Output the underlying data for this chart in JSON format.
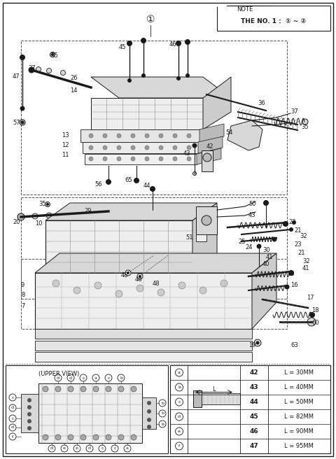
{
  "bg_color": "#ffffff",
  "line_color": "#1a1a1a",
  "text_color": "#1a1a1a",
  "gray_fill": "#d8d8d8",
  "light_gray": "#eeeeee",
  "dark_gray": "#555555",
  "note_text1": "NOTE",
  "note_text2": "THE NO. 1 :  ① ~ ②",
  "circle_num": "①",
  "upper_view_label": "(UPPER VIEW)",
  "table_data": [
    [
      "a",
      "42",
      "L = 30MM"
    ],
    [
      "b",
      "43",
      "L = 40MM"
    ],
    [
      "c",
      "44",
      "L = 50MM"
    ],
    [
      "d",
      "45",
      "L = 82MM"
    ],
    [
      "e",
      "46",
      "L = 90MM"
    ],
    [
      "f",
      "47",
      "L = 95MM"
    ]
  ],
  "fig_width": 4.8,
  "fig_height": 6.56,
  "dpi": 100
}
